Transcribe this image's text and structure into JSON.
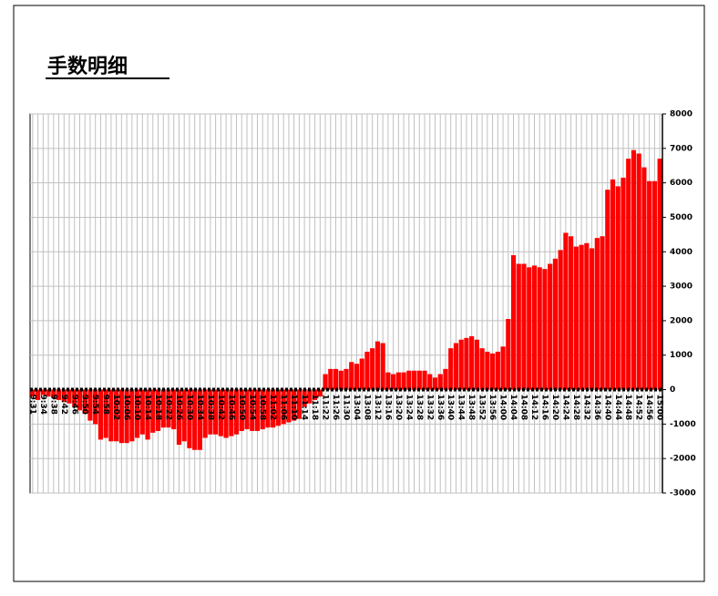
{
  "chart_data": {
    "type": "bar",
    "title": "手数明细",
    "categories": [
      "9:31",
      null,
      "9:34",
      null,
      "9:38",
      null,
      "9:42",
      null,
      "9:46",
      null,
      "9:50",
      null,
      "9:54",
      null,
      "9:58",
      null,
      "10:02",
      null,
      "10:06",
      null,
      "10:10",
      null,
      "10:14",
      null,
      "10:18",
      null,
      "10:22",
      null,
      "10:26",
      null,
      "10:30",
      null,
      "10:34",
      null,
      "10:38",
      null,
      "10:42",
      null,
      "10:46",
      null,
      "10:50",
      null,
      "10:54",
      null,
      "10:58",
      null,
      "11:02",
      null,
      "11:06",
      null,
      "11:10",
      null,
      "11:14",
      null,
      "11:18",
      null,
      "11:22",
      null,
      "11:26",
      null,
      "11:30",
      null,
      "13:04",
      null,
      "13:08",
      null,
      "13:12",
      null,
      "13:16",
      null,
      "13:20",
      null,
      "13:24",
      null,
      "13:28",
      null,
      "13:32",
      null,
      "13:36",
      null,
      "13:40",
      null,
      "13:44",
      null,
      "13:48",
      null,
      "13:52",
      null,
      "13:56",
      null,
      "14:00",
      null,
      "14:04",
      null,
      "14:08",
      null,
      "14:12",
      null,
      "14:16",
      null,
      "14:20",
      null,
      "14:24",
      null,
      "14:28",
      null,
      "14:32",
      null,
      "14:36",
      null,
      "14:40",
      null,
      "14:44",
      null,
      "14:48",
      null,
      "14:52",
      null,
      "14:56",
      null,
      "15:00"
    ],
    "values": [
      -200,
      -300,
      -150,
      -200,
      -250,
      -300,
      -350,
      -400,
      -500,
      -600,
      -700,
      -900,
      -1000,
      -1450,
      -1400,
      -1500,
      -1500,
      -1550,
      -1550,
      -1500,
      -1400,
      -1300,
      -1450,
      -1250,
      -1200,
      -1100,
      -1100,
      -1150,
      -1600,
      -1500,
      -1700,
      -1750,
      -1750,
      -1400,
      -1300,
      -1300,
      -1350,
      -1400,
      -1350,
      -1300,
      -1200,
      -1150,
      -1200,
      -1200,
      -1150,
      -1100,
      -1100,
      -1050,
      -1000,
      -950,
      -900,
      -850,
      -500,
      -400,
      -300,
      -200,
      450,
      600,
      600,
      550,
      600,
      800,
      750,
      900,
      1100,
      1200,
      1400,
      1350,
      500,
      450,
      500,
      500,
      550,
      550,
      550,
      550,
      450,
      350,
      450,
      600,
      1200,
      1350,
      1450,
      1500,
      1550,
      1450,
      1200,
      1100,
      1050,
      1100,
      1250,
      2050,
      3900,
      3650,
      3650,
      3550,
      3600,
      3550,
      3500,
      3650,
      3800,
      4050,
      4550,
      4450,
      4150,
      4200,
      4250,
      4100,
      4400,
      4450,
      5800,
      6100,
      5900,
      6150,
      6700,
      6950,
      6850,
      6450,
      6050,
      6050,
      6700
    ],
    "color": "#ff0000",
    "ylim": [
      -3000,
      8000
    ],
    "yticks": [
      -3000,
      -2000,
      -1000,
      0,
      1000,
      2000,
      3000,
      4000,
      5000,
      6000,
      7000,
      8000
    ],
    "grid": true
  }
}
